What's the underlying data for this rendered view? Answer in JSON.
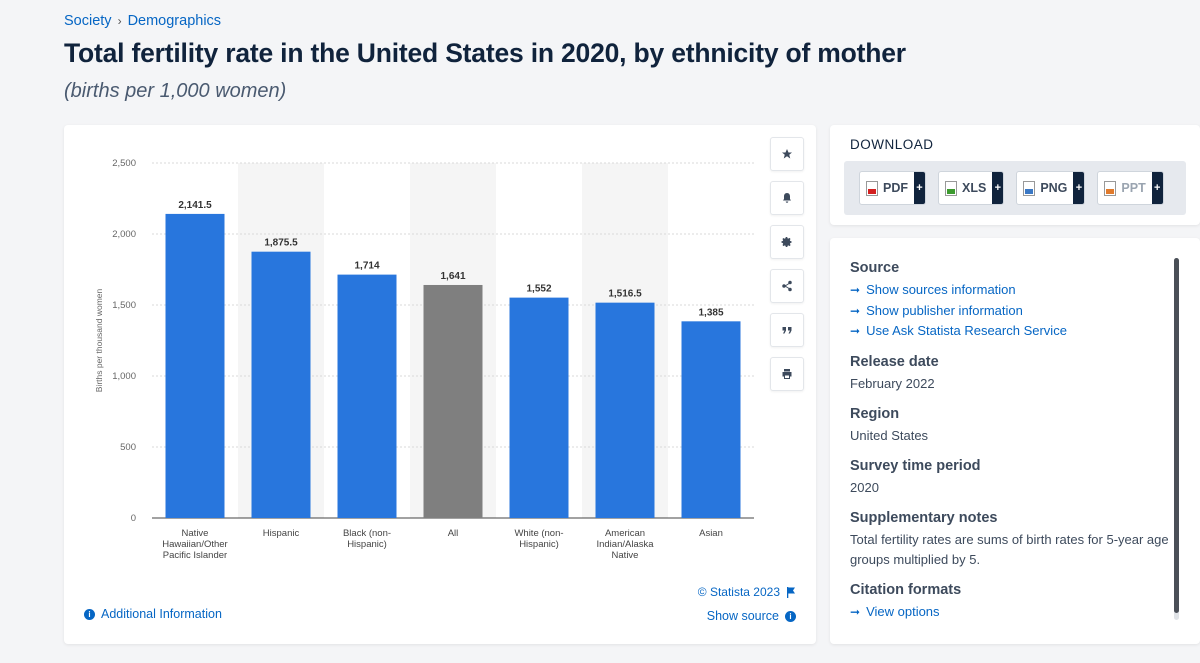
{
  "breadcrumb": {
    "items": [
      "Society",
      "Demographics"
    ],
    "separator": "›"
  },
  "page": {
    "title": "Total fertility rate in the United States in 2020, by ethnicity of mother",
    "subtitle": "(births per 1,000 women)"
  },
  "chart_data": {
    "type": "bar",
    "ylabel": "Births per thousand women",
    "xlabel": "",
    "ylim": [
      0,
      2500
    ],
    "yticks": [
      0,
      500,
      1000,
      1500,
      2000,
      2500
    ],
    "ytick_labels": [
      "0",
      "500",
      "1,000",
      "1,500",
      "2,000",
      "2,500"
    ],
    "grid": true,
    "categories": [
      [
        "Native",
        "Hawaiian/Other",
        "Pacific Islander"
      ],
      [
        "Hispanic"
      ],
      [
        "Black (non-",
        "Hispanic)"
      ],
      [
        "All"
      ],
      [
        "White (non-",
        "Hispanic)"
      ],
      [
        "American",
        "Indian/Alaska",
        "Native"
      ],
      [
        "Asian"
      ]
    ],
    "values": [
      2141.5,
      1875.5,
      1714,
      1641,
      1552,
      1516.5,
      1385
    ],
    "value_labels": [
      "2,141.5",
      "1,875.5",
      "1,714",
      "1,641",
      "1,552",
      "1,516.5",
      "1,385"
    ],
    "highlight_index": 3,
    "colors": {
      "bar": "#2876dd",
      "highlight": "#7f7f7f",
      "band": "#f5f5f5"
    }
  },
  "chart_footer": {
    "copyright": "© Statista 2023",
    "additional_info": "Additional Information",
    "show_source": "Show source"
  },
  "tools": [
    "star-icon",
    "bell-icon",
    "gear-icon",
    "share-icon",
    "quote-icon",
    "print-icon"
  ],
  "download": {
    "title": "DOWNLOAD",
    "buttons": [
      {
        "label": "PDF",
        "icon": "pdf-icon"
      },
      {
        "label": "XLS",
        "icon": "xls-icon"
      },
      {
        "label": "PNG",
        "icon": "png-icon"
      },
      {
        "label": "PPT",
        "icon": "ppt-icon"
      }
    ]
  },
  "info": {
    "source_heading": "Source",
    "source_links": [
      "Show sources information",
      "Show publisher information",
      "Use Ask Statista Research Service"
    ],
    "release_heading": "Release date",
    "release_value": "February 2022",
    "region_heading": "Region",
    "region_value": "United States",
    "survey_heading": "Survey time period",
    "survey_value": "2020",
    "notes_heading": "Supplementary notes",
    "notes_value": "Total fertility rates are sums of birth rates for 5-year age groups multiplied by 5.",
    "citation_heading": "Citation formats",
    "citation_link": "View options"
  }
}
